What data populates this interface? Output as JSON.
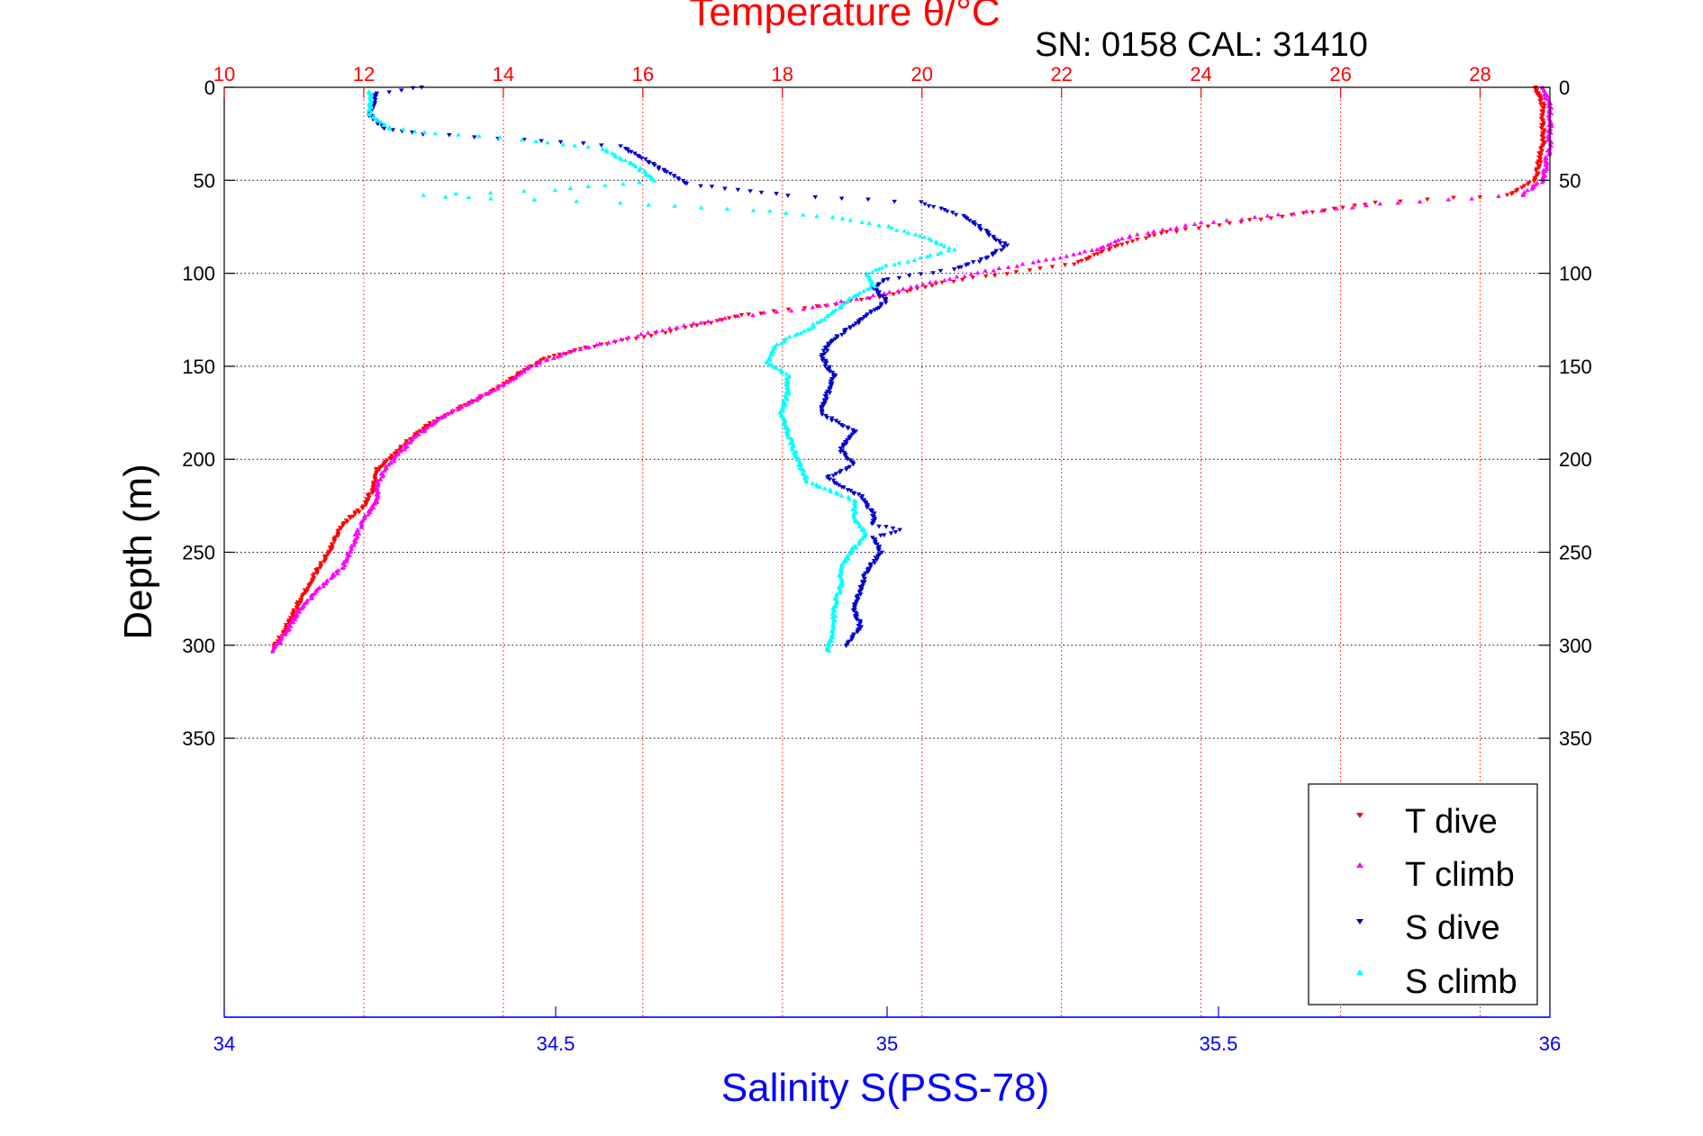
{
  "chart_data": {
    "type": "scatter",
    "title": "Temperature θ/°C",
    "subtitle": "SN: 0158  CAL: 31410",
    "xlabel_bottom": "Salinity S(PSS-78)",
    "ylabel": "Depth (m)",
    "x_top": {
      "label": "Temperature θ/°C",
      "lim": [
        10,
        29
      ],
      "ticks": [
        10,
        12,
        14,
        16,
        18,
        20,
        22,
        24,
        26,
        28
      ]
    },
    "x_bottom": {
      "label": "Salinity S(PSS-78)",
      "lim": [
        34,
        36
      ],
      "ticks": [
        34,
        34.5,
        35,
        35.5,
        36
      ]
    },
    "y": {
      "lim": [
        0,
        500
      ],
      "reversed": true,
      "ticks": [
        0,
        50,
        100,
        150,
        200,
        250,
        300,
        350
      ]
    },
    "grid": true,
    "legend_position": "bottom-right",
    "colors": {
      "t_dive": "#ff0000",
      "t_climb": "#ff00ff",
      "s_dive": "#0000cc",
      "s_climb": "#00ffff",
      "top_axis": "#ff0000",
      "bottom_axis": "#0000ff"
    },
    "series": [
      {
        "name": "T dive",
        "axis": "top",
        "marker": "triangle-down",
        "points": [
          [
            28.8,
            0
          ],
          [
            28.9,
            10
          ],
          [
            28.9,
            30
          ],
          [
            28.8,
            50
          ],
          [
            28.4,
            58
          ],
          [
            26.5,
            62
          ],
          [
            25.0,
            70
          ],
          [
            23.5,
            78
          ],
          [
            22.8,
            85
          ],
          [
            22.2,
            95
          ],
          [
            21.2,
            100
          ],
          [
            20.3,
            105
          ],
          [
            19.5,
            112
          ],
          [
            18.5,
            118
          ],
          [
            17.5,
            122
          ],
          [
            16.8,
            128
          ],
          [
            16.0,
            134
          ],
          [
            15.2,
            140
          ],
          [
            14.6,
            146
          ],
          [
            14.3,
            152
          ],
          [
            14.0,
            160
          ],
          [
            13.5,
            170
          ],
          [
            13.0,
            180
          ],
          [
            12.7,
            188
          ],
          [
            12.5,
            195
          ],
          [
            12.2,
            205
          ],
          [
            12.15,
            215
          ],
          [
            12.0,
            225
          ],
          [
            11.7,
            235
          ],
          [
            11.5,
            250
          ],
          [
            11.3,
            262
          ],
          [
            11.1,
            275
          ],
          [
            10.9,
            290
          ],
          [
            10.7,
            302
          ]
        ]
      },
      {
        "name": "T climb",
        "axis": "top",
        "marker": "triangle-up",
        "points": [
          [
            28.9,
            0
          ],
          [
            29.0,
            10
          ],
          [
            29.0,
            30
          ],
          [
            28.9,
            50
          ],
          [
            28.6,
            58
          ],
          [
            26.8,
            62
          ],
          [
            25.5,
            67
          ],
          [
            24.0,
            73
          ],
          [
            23.0,
            80
          ],
          [
            22.5,
            87
          ],
          [
            21.8,
            93
          ],
          [
            20.9,
            99
          ],
          [
            20.0,
            106
          ],
          [
            19.2,
            113
          ],
          [
            18.3,
            119
          ],
          [
            17.2,
            124
          ],
          [
            16.6,
            128
          ],
          [
            16.0,
            133
          ],
          [
            15.4,
            138
          ],
          [
            14.8,
            144
          ],
          [
            14.4,
            150
          ],
          [
            14.1,
            158
          ],
          [
            13.6,
            168
          ],
          [
            13.1,
            178
          ],
          [
            12.8,
            186
          ],
          [
            12.6,
            193
          ],
          [
            12.35,
            203
          ],
          [
            12.2,
            212
          ],
          [
            12.2,
            222
          ],
          [
            12.0,
            232
          ],
          [
            11.85,
            245
          ],
          [
            11.7,
            258
          ],
          [
            11.4,
            268
          ],
          [
            11.1,
            280
          ],
          [
            10.9,
            292
          ],
          [
            10.7,
            303
          ]
        ]
      },
      {
        "name": "S dive",
        "axis": "bottom",
        "marker": "triangle-down",
        "points": [
          [
            34.3,
            0
          ],
          [
            34.23,
            3
          ],
          [
            34.22,
            15
          ],
          [
            34.24,
            22
          ],
          [
            34.3,
            25
          ],
          [
            34.45,
            28
          ],
          [
            34.6,
            32
          ],
          [
            34.65,
            42
          ],
          [
            34.7,
            52
          ],
          [
            34.85,
            58
          ],
          [
            35.05,
            62
          ],
          [
            35.08,
            65
          ],
          [
            35.12,
            70
          ],
          [
            35.15,
            78
          ],
          [
            35.18,
            85
          ],
          [
            35.15,
            92
          ],
          [
            35.1,
            98
          ],
          [
            35.0,
            103
          ],
          [
            34.98,
            108
          ],
          [
            35.0,
            115
          ],
          [
            34.97,
            122
          ],
          [
            34.95,
            128
          ],
          [
            34.92,
            135
          ],
          [
            34.9,
            145
          ],
          [
            34.92,
            155
          ],
          [
            34.91,
            165
          ],
          [
            34.9,
            175
          ],
          [
            34.95,
            185
          ],
          [
            34.93,
            195
          ],
          [
            34.95,
            203
          ],
          [
            34.91,
            210
          ],
          [
            34.96,
            220
          ],
          [
            34.98,
            230
          ],
          [
            34.98,
            235
          ],
          [
            35.02,
            238
          ],
          [
            34.98,
            242
          ],
          [
            34.99,
            250
          ],
          [
            34.97,
            260
          ],
          [
            34.96,
            270
          ],
          [
            34.95,
            280
          ],
          [
            34.96,
            290
          ],
          [
            34.94,
            300
          ]
        ]
      },
      {
        "name": "S climb",
        "axis": "bottom",
        "marker": "triangle-up",
        "points": [
          [
            34.22,
            2
          ],
          [
            34.22,
            15
          ],
          [
            34.25,
            22
          ],
          [
            34.32,
            25
          ],
          [
            34.45,
            28
          ],
          [
            34.57,
            33
          ],
          [
            34.62,
            42
          ],
          [
            34.65,
            50
          ],
          [
            34.5,
            55
          ],
          [
            34.3,
            58
          ],
          [
            34.4,
            60
          ],
          [
            34.6,
            62
          ],
          [
            34.8,
            66
          ],
          [
            34.92,
            70
          ],
          [
            35.0,
            75
          ],
          [
            35.05,
            80
          ],
          [
            35.1,
            87
          ],
          [
            35.05,
            92
          ],
          [
            35.0,
            96
          ],
          [
            34.97,
            100
          ],
          [
            34.98,
            107
          ],
          [
            34.95,
            112
          ],
          [
            34.93,
            118
          ],
          [
            34.9,
            125
          ],
          [
            34.88,
            130
          ],
          [
            34.85,
            135
          ],
          [
            34.83,
            140
          ],
          [
            34.82,
            148
          ],
          [
            34.85,
            155
          ],
          [
            34.85,
            165
          ],
          [
            34.84,
            175
          ],
          [
            34.85,
            185
          ],
          [
            34.86,
            195
          ],
          [
            34.87,
            205
          ],
          [
            34.88,
            212
          ],
          [
            34.95,
            222
          ],
          [
            34.95,
            232
          ],
          [
            34.97,
            240
          ],
          [
            34.95,
            248
          ],
          [
            34.93,
            258
          ],
          [
            34.93,
            268
          ],
          [
            34.92,
            280
          ],
          [
            34.92,
            292
          ],
          [
            34.91,
            303
          ]
        ]
      }
    ],
    "legend": [
      "T dive",
      "T climb",
      "S dive",
      "S climb"
    ]
  }
}
